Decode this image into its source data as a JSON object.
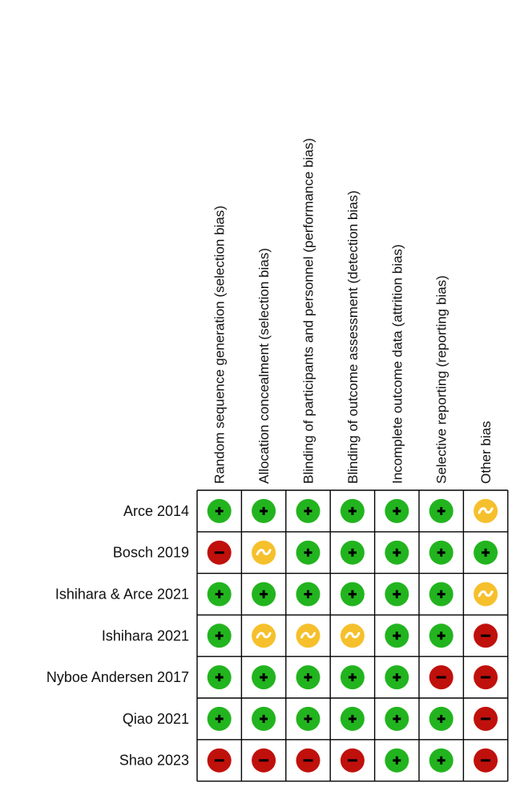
{
  "chart_data": {
    "type": "table",
    "columns": [
      "Random sequence generation (selection bias)",
      "Allocation concealment (selection bias)",
      "Blinding of participants and personnel (performance bias)",
      "Blinding of outcome assessment (detection bias)",
      "Incomplete outcome data (attrition bias)",
      "Selective reporting (reporting bias)",
      "Other bias"
    ],
    "rows": [
      "Arce 2014",
      "Bosch 2019",
      "Ishihara & Arce 2021",
      "Ishihara 2021",
      "Nyboe Andersen 2017",
      "Qiao 2021",
      "Shao 2023"
    ],
    "cells": [
      [
        "low",
        "low",
        "low",
        "low",
        "low",
        "low",
        "unclear"
      ],
      [
        "high",
        "unclear",
        "low",
        "low",
        "low",
        "low",
        "low"
      ],
      [
        "low",
        "low",
        "low",
        "low",
        "low",
        "low",
        "unclear"
      ],
      [
        "low",
        "unclear",
        "unclear",
        "unclear",
        "low",
        "low",
        "high"
      ],
      [
        "low",
        "low",
        "low",
        "low",
        "low",
        "high",
        "high"
      ],
      [
        "low",
        "low",
        "low",
        "low",
        "low",
        "low",
        "high"
      ],
      [
        "high",
        "high",
        "high",
        "high",
        "low",
        "low",
        "high"
      ]
    ],
    "judgements": {
      "low": {
        "symbol": "+",
        "color": "#22b41e",
        "text_color": "#000000"
      },
      "unclear": {
        "symbol": "~",
        "color": "#f5c02c",
        "text_color": "#ffffff"
      },
      "high": {
        "symbol": "−",
        "color": "#c0100c",
        "text_color": "#000000"
      }
    },
    "grid_color": "#000000"
  }
}
